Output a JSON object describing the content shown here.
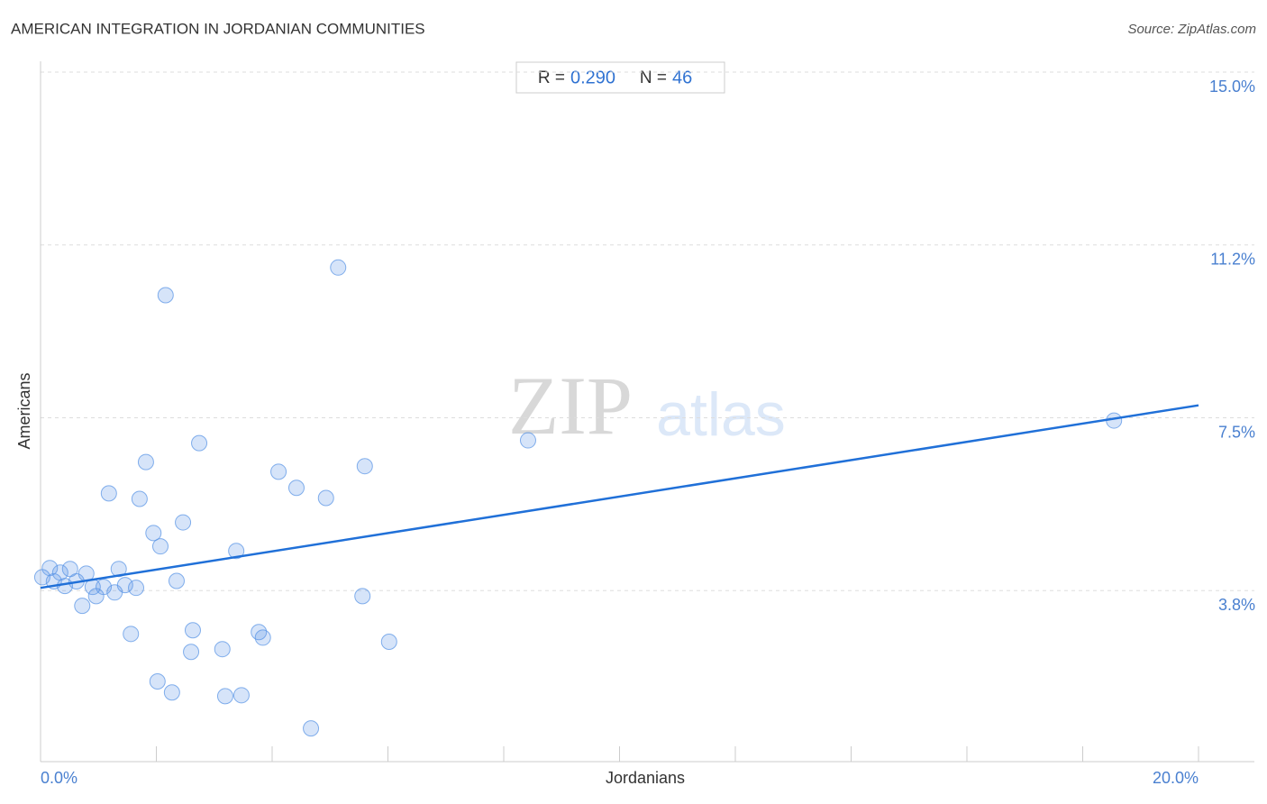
{
  "chart_data": {
    "type": "scatter",
    "title": "AMERICAN INTEGRATION IN JORDANIAN COMMUNITIES",
    "source": "Source: ZipAtlas.com",
    "watermark": [
      "ZIP",
      "atlas"
    ],
    "x_label": "Jordanians",
    "y_label": "Americans",
    "stats": {
      "r_label": "R =",
      "r": "0.290",
      "n_label": "N =",
      "n": 46
    },
    "color": "#5b95e6",
    "line_color": "#2070d8",
    "grid": true,
    "xlim": [
      0,
      20
    ],
    "ylim": [
      0,
      15
    ],
    "xticks": [
      {
        "value": 0,
        "label": "0.0%"
      },
      {
        "value": 2,
        "label": null
      },
      {
        "value": 4,
        "label": null
      },
      {
        "value": 6,
        "label": null
      },
      {
        "value": 8,
        "label": null
      },
      {
        "value": 10,
        "label": null
      },
      {
        "value": 12,
        "label": null
      },
      {
        "value": 14,
        "label": null
      },
      {
        "value": 16,
        "label": null
      },
      {
        "value": 18,
        "label": null
      },
      {
        "value": 20,
        "label": "20.0%"
      }
    ],
    "yticks": [
      {
        "value": 3.75,
        "label": "3.8%"
      },
      {
        "value": 7.5,
        "label": "7.5%"
      },
      {
        "value": 11.25,
        "label": "11.2%"
      },
      {
        "value": 15,
        "label": "15.0%"
      }
    ],
    "x": [
      0.03,
      0.16,
      0.23,
      0.34,
      0.42,
      0.51,
      0.62,
      0.72,
      0.79,
      0.9,
      0.96,
      1.09,
      1.18,
      1.28,
      1.35,
      1.46,
      1.56,
      1.65,
      1.71,
      1.82,
      1.95,
      2.02,
      2.07,
      2.16,
      2.27,
      2.35,
      2.46,
      2.6,
      2.63,
      2.74,
      3.14,
      3.19,
      3.38,
      3.47,
      3.77,
      3.84,
      4.11,
      4.42,
      4.67,
      4.93,
      5.14,
      5.56,
      5.6,
      6.02,
      8.42,
      18.54
    ],
    "values": [
      4.04,
      4.24,
      3.95,
      4.14,
      3.85,
      4.22,
      3.95,
      3.42,
      4.12,
      3.83,
      3.63,
      3.83,
      5.86,
      3.71,
      4.22,
      3.87,
      2.81,
      3.81,
      5.74,
      6.54,
      5.0,
      1.78,
      4.71,
      10.16,
      1.54,
      3.96,
      5.23,
      2.42,
      2.89,
      6.95,
      2.48,
      1.46,
      4.61,
      1.48,
      2.85,
      2.73,
      6.33,
      5.98,
      0.76,
      5.76,
      10.76,
      3.63,
      6.45,
      2.64,
      7.01,
      7.44
    ],
    "trend": {
      "x": [
        0,
        20
      ],
      "y": [
        3.81,
        7.77
      ]
    }
  }
}
